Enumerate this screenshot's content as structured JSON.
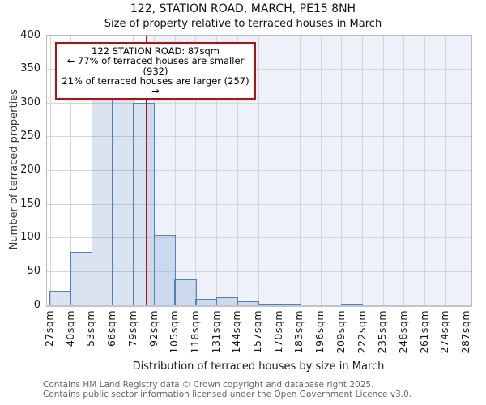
{
  "title": "122, STATION ROAD, MARCH, PE15 8NH",
  "subtitle": "Size of property relative to terraced houses in March",
  "annotation": {
    "line1": "122 STATION ROAD: 87sqm",
    "line2": "← 77% of terraced houses are smaller (932)",
    "line3": "21% of terraced houses are larger (257) →"
  },
  "footer": {
    "line1": "Contains HM Land Registry data © Crown copyright and database right 2025.",
    "line2": "Contains public sector information licensed under the Open Government Licence v3.0."
  },
  "chart_data": {
    "type": "bar",
    "title": "122, STATION ROAD, MARCH, PE15 8NH",
    "subtitle": "Size of property relative to terraced houses in March",
    "xlabel": "Distribution of terraced houses by size in March",
    "ylabel": "Number of terraced properties",
    "bin_width_sqm": 13,
    "bin_starts": [
      27,
      40,
      53,
      66,
      79,
      92,
      105,
      118,
      131,
      144,
      157,
      170,
      183,
      196,
      209,
      222,
      235,
      248,
      261,
      274
    ],
    "values": [
      22,
      79,
      320,
      313,
      300,
      104,
      38,
      10,
      12,
      6,
      3,
      2,
      0,
      0,
      1,
      0,
      0,
      0,
      0,
      0
    ],
    "x_tick_labels": [
      "27sqm",
      "40sqm",
      "53sqm",
      "66sqm",
      "79sqm",
      "92sqm",
      "105sqm",
      "118sqm",
      "131sqm",
      "144sqm",
      "157sqm",
      "170sqm",
      "183sqm",
      "196sqm",
      "209sqm",
      "222sqm",
      "235sqm",
      "248sqm",
      "261sqm",
      "274sqm",
      "287sqm"
    ],
    "x_ticks": [
      27,
      40,
      53,
      66,
      79,
      92,
      105,
      118,
      131,
      144,
      157,
      170,
      183,
      196,
      209,
      222,
      235,
      248,
      261,
      274,
      287
    ],
    "y_ticks": [
      0,
      50,
      100,
      150,
      200,
      250,
      300,
      350,
      400
    ],
    "ylim": [
      0,
      400
    ],
    "xlim": [
      27,
      287
    ],
    "grid": true,
    "marker_value_sqm": 87,
    "shaded_region": "right-of-marker",
    "colors": {
      "bar_fill": "#dce6f3",
      "bar_edge": "#4e81bd",
      "marker_line": "#b50f0f",
      "annotation_border": "#b50f0f",
      "shaded_region": "#eef1fa",
      "grid": "#d4d6da"
    }
  }
}
